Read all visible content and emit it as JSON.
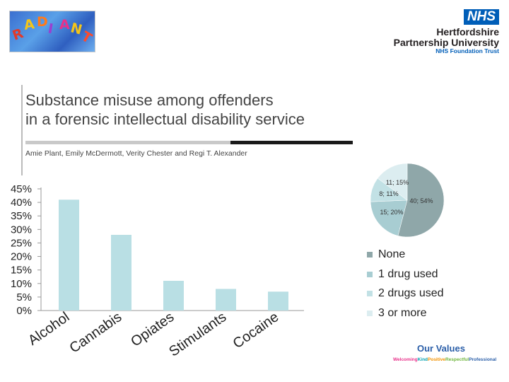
{
  "header": {
    "radiant_logo": {
      "letters": [
        "R",
        "A",
        "D",
        "I",
        "A",
        "N",
        "T"
      ]
    },
    "nhs_logo": {
      "badge": "NHS",
      "line1": "Hertfordshire",
      "line2": "Partnership University",
      "line3": "NHS Foundation Trust"
    }
  },
  "paper": {
    "title_line1": "Substance misuse among offenders",
    "title_line2": "in a forensic intellectual disability service",
    "authors": "Amie Plant, Emily McDermott, Verity Chester and Regi T. Alexander"
  },
  "footer": {
    "our_values": "Our Values",
    "tagline": [
      "Welcoming",
      "Kind",
      "Positive",
      "Respectful",
      "Professional"
    ]
  },
  "colors": {
    "bar": "#b9dfe4",
    "pie": [
      "#8fa7a9",
      "#a8cdd2",
      "#c2e1e5",
      "#dcedf0"
    ],
    "nhs_blue": "#005eb8",
    "tagline": [
      "#e8318a",
      "#00a0b0",
      "#f29100",
      "#6fb53e",
      "#2a5ea8"
    ]
  },
  "chart_data": [
    {
      "type": "bar",
      "categories": [
        "Alcohol",
        "Cannabis",
        "Opiates",
        "Stimulants",
        "Cocaine"
      ],
      "values": [
        41,
        28,
        11,
        8,
        7
      ],
      "ylim": [
        0,
        45
      ],
      "ytick_labels": [
        "0%",
        "5%",
        "10%",
        "15%",
        "20%",
        "25%",
        "30%",
        "35%",
        "40%",
        "45%"
      ],
      "grid": false,
      "xlabel": "",
      "ylabel": ""
    },
    {
      "type": "pie",
      "labels": [
        "None",
        "1 drug used",
        "2 drugs used",
        "3 or more"
      ],
      "counts": [
        40,
        15,
        8,
        11
      ],
      "percentages": [
        54,
        20,
        11,
        15
      ],
      "data_labels": [
        "40; 54%",
        "15; 20%",
        "8; 11%",
        "11; 15%"
      ],
      "legend": "right"
    }
  ]
}
